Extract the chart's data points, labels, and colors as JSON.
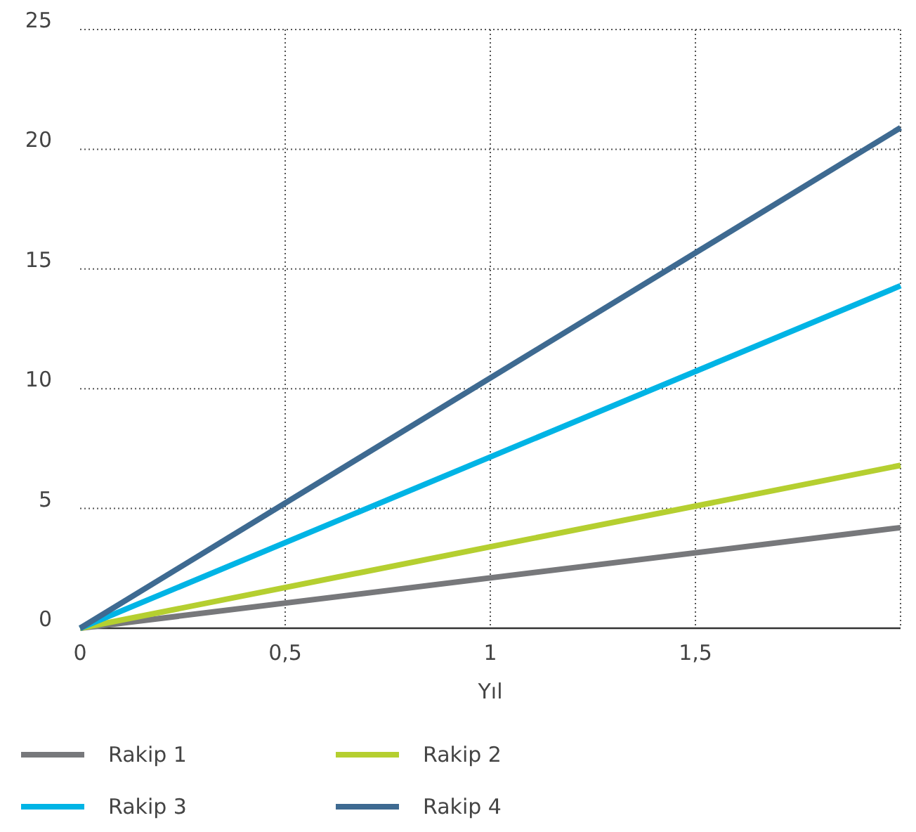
{
  "chart_data": {
    "type": "line",
    "xlabel": "Yıl",
    "x": [
      0,
      2
    ],
    "series": [
      {
        "name": "Rakip 1",
        "color": "#77787b",
        "values": [
          0,
          4.2
        ]
      },
      {
        "name": "Rakip 2",
        "color": "#b5cf30",
        "values": [
          0,
          6.8
        ]
      },
      {
        "name": "Rakip 3",
        "color": "#00b4e5",
        "values": [
          0,
          14.3
        ]
      },
      {
        "name": "Rakip 4",
        "color": "#3e6a91",
        "values": [
          0,
          20.9
        ]
      }
    ],
    "xlim": [
      0,
      2
    ],
    "xticks": [
      0,
      {
        "value": 0.5,
        "label": "0,5"
      },
      1,
      {
        "value": 1.5,
        "label": "1,5"
      },
      {
        "value": 2,
        "label": null
      }
    ],
    "ylim": [
      0,
      25
    ],
    "yticks": [
      0,
      5,
      10,
      15,
      20,
      25
    ],
    "grid": true,
    "legend": "bottom",
    "marker": "none",
    "line_style": "solid"
  }
}
